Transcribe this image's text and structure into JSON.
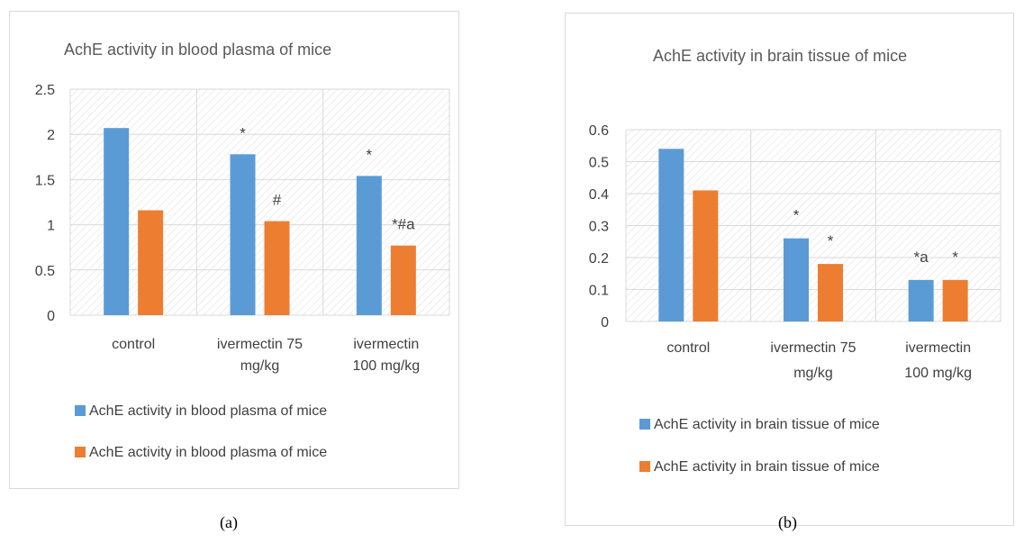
{
  "chart_data": [
    {
      "type": "bar",
      "panel": "a",
      "title": "AchE activity  in blood plasma of mice",
      "categories": [
        [
          "control"
        ],
        [
          "ivermectin 75",
          "mg/kg"
        ],
        [
          "ivermectin",
          "100 mg/kg"
        ]
      ],
      "ylim": [
        0,
        2.5
      ],
      "yticks": [
        "0",
        "0.5",
        "1",
        "1.5",
        "2",
        "2.5"
      ],
      "grid": true,
      "legend_position": "bottom",
      "series": [
        {
          "name": "AchE activity  in blood plasma of mice",
          "color": "#5b9bd5",
          "values": [
            2.07,
            1.78,
            1.54
          ],
          "annotations": [
            "",
            "*",
            "*"
          ]
        },
        {
          "name": "AchE activity  in blood plasma of mice",
          "color": "#ed7d31",
          "values": [
            1.16,
            1.04,
            0.77
          ],
          "annotations": [
            "",
            "#",
            "*#a"
          ]
        }
      ]
    },
    {
      "type": "bar",
      "panel": "b",
      "title": "AchE activity  in brain tissue of mice",
      "categories": [
        [
          "control"
        ],
        [
          "ivermectin 75",
          "mg/kg"
        ],
        [
          "ivermectin",
          "100 mg/kg"
        ]
      ],
      "ylim": [
        0,
        0.6
      ],
      "yticks": [
        "0",
        "0.1",
        "0.2",
        "0.3",
        "0.4",
        "0.5",
        "0.6"
      ],
      "grid": true,
      "legend_position": "bottom",
      "series": [
        {
          "name": "AchE activity  in brain tissue of mice",
          "color": "#5b9bd5",
          "values": [
            0.54,
            0.26,
            0.13
          ],
          "annotations": [
            "",
            "*",
            "*a"
          ]
        },
        {
          "name": "AchE activity  in brain tissue of mice",
          "color": "#ed7d31",
          "values": [
            0.41,
            0.18,
            0.13
          ],
          "annotations": [
            "",
            "*",
            "*"
          ]
        }
      ]
    }
  ],
  "captions": {
    "a": "(a)",
    "b": "(b)"
  }
}
